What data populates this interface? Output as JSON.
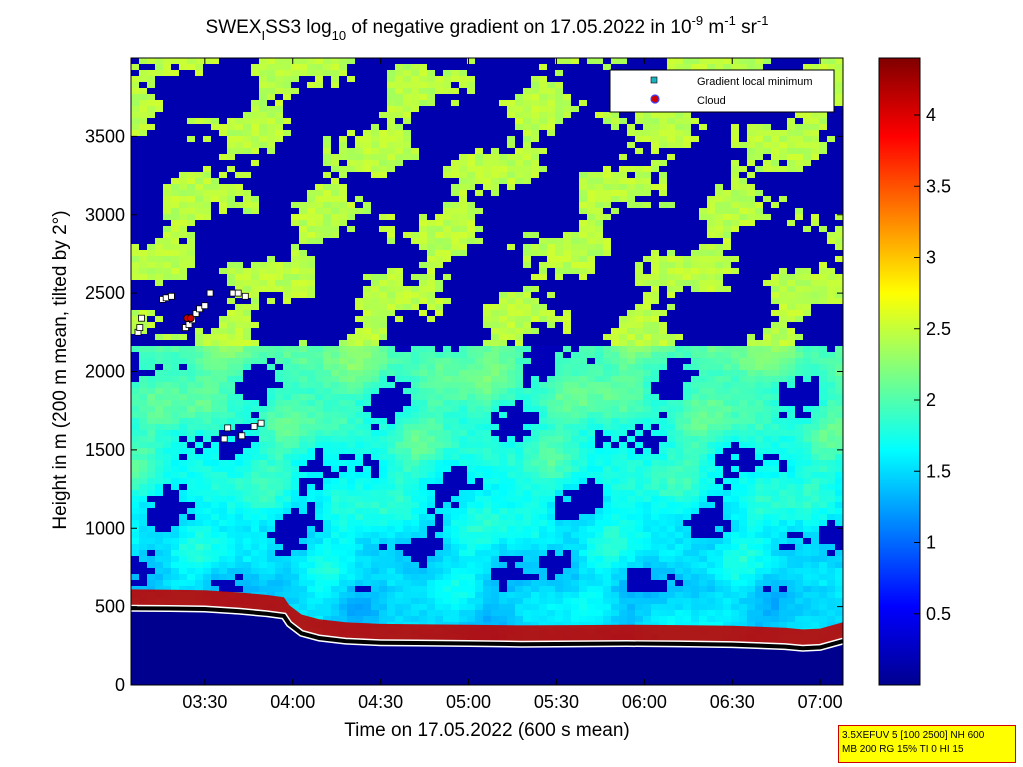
{
  "chart_data": {
    "type": "heatmap",
    "title": {
      "prefix": "SWEX",
      "prefix_sub": "I",
      "mid": "SS3 log",
      "log_sub": "10",
      "rest": " of negative gradient on 17.05.2022 in 10",
      "exp1": "-9",
      "unit1": " m",
      "exp2": "-1",
      "unit2": " sr",
      "exp3": "-1"
    },
    "xlabel": "Time on 17.05.2022 (600 s mean)",
    "ylabel": "Height in m (200 m mean, tilted by 2°)",
    "x_range_hours": [
      3.08,
      7.13
    ],
    "ylim": [
      0,
      4000
    ],
    "x_ticks": [
      {
        "label": "03:30",
        "value": 3.5
      },
      {
        "label": "04:00",
        "value": 4.0
      },
      {
        "label": "04:30",
        "value": 4.5
      },
      {
        "label": "05:00",
        "value": 5.0
      },
      {
        "label": "05:30",
        "value": 5.5
      },
      {
        "label": "06:00",
        "value": 6.0
      },
      {
        "label": "06:30",
        "value": 6.5
      },
      {
        "label": "07:00",
        "value": 7.0
      }
    ],
    "y_ticks": [
      0,
      500,
      1000,
      1500,
      2000,
      2500,
      3000,
      3500
    ],
    "colorbar": {
      "colormap": "jet",
      "range": [
        0,
        4.4
      ],
      "ticks": [
        "0.5",
        "1",
        "1.5",
        "2",
        "2.5",
        "3",
        "3.5",
        "4"
      ],
      "tick_values": [
        0.5,
        1,
        1.5,
        2,
        2.5,
        3,
        3.5,
        4
      ]
    },
    "legend": {
      "placement": "top-right",
      "entries": [
        {
          "label": "Gradient local minimum",
          "marker": "square",
          "color": "#1ab0c0"
        },
        {
          "label": "Cloud",
          "marker": "circle",
          "color": "#d00000"
        }
      ]
    },
    "series": [
      {
        "type": "line",
        "x": [
          3.08,
          3.3,
          3.5,
          3.7,
          3.85,
          3.95,
          3.98,
          4.05,
          4.15,
          4.3,
          4.5,
          4.7,
          5.0,
          5.3,
          5.6,
          5.9,
          6.2,
          6.5,
          6.8,
          6.9,
          7.0,
          7.13
        ],
        "y": [
          490,
          488,
          485,
          470,
          455,
          440,
          390,
          330,
          300,
          280,
          270,
          268,
          265,
          260,
          262,
          265,
          262,
          258,
          245,
          235,
          240,
          280
        ]
      }
    ],
    "markers": [
      {
        "x": 3.12,
        "y": 2250
      },
      {
        "x": 3.13,
        "y": 2280
      },
      {
        "x": 3.14,
        "y": 2340
      },
      {
        "x": 3.26,
        "y": 2460
      },
      {
        "x": 3.28,
        "y": 2470
      },
      {
        "x": 3.31,
        "y": 2480
      },
      {
        "x": 3.39,
        "y": 2280
      },
      {
        "x": 3.41,
        "y": 2300
      },
      {
        "x": 3.43,
        "y": 2330
      },
      {
        "x": 3.45,
        "y": 2370
      },
      {
        "x": 3.47,
        "y": 2400
      },
      {
        "x": 3.5,
        "y": 2420
      },
      {
        "x": 3.53,
        "y": 2500
      },
      {
        "x": 3.66,
        "y": 2500
      },
      {
        "x": 3.69,
        "y": 2500
      },
      {
        "x": 3.73,
        "y": 2480
      },
      {
        "x": 3.61,
        "y": 1570
      },
      {
        "x": 3.63,
        "y": 1640
      },
      {
        "x": 3.71,
        "y": 1590
      },
      {
        "x": 3.78,
        "y": 1650
      },
      {
        "x": 3.82,
        "y": 1670
      }
    ],
    "cloud_markers": [
      {
        "x": 3.4,
        "y": 2340
      },
      {
        "x": 3.42,
        "y": 2340
      }
    ]
  },
  "info_box": {
    "line1": "3.5XEFUV 5 [100 2500] NH 600",
    "line2": "MB 200 RG 15% TI 0 HI 15"
  }
}
